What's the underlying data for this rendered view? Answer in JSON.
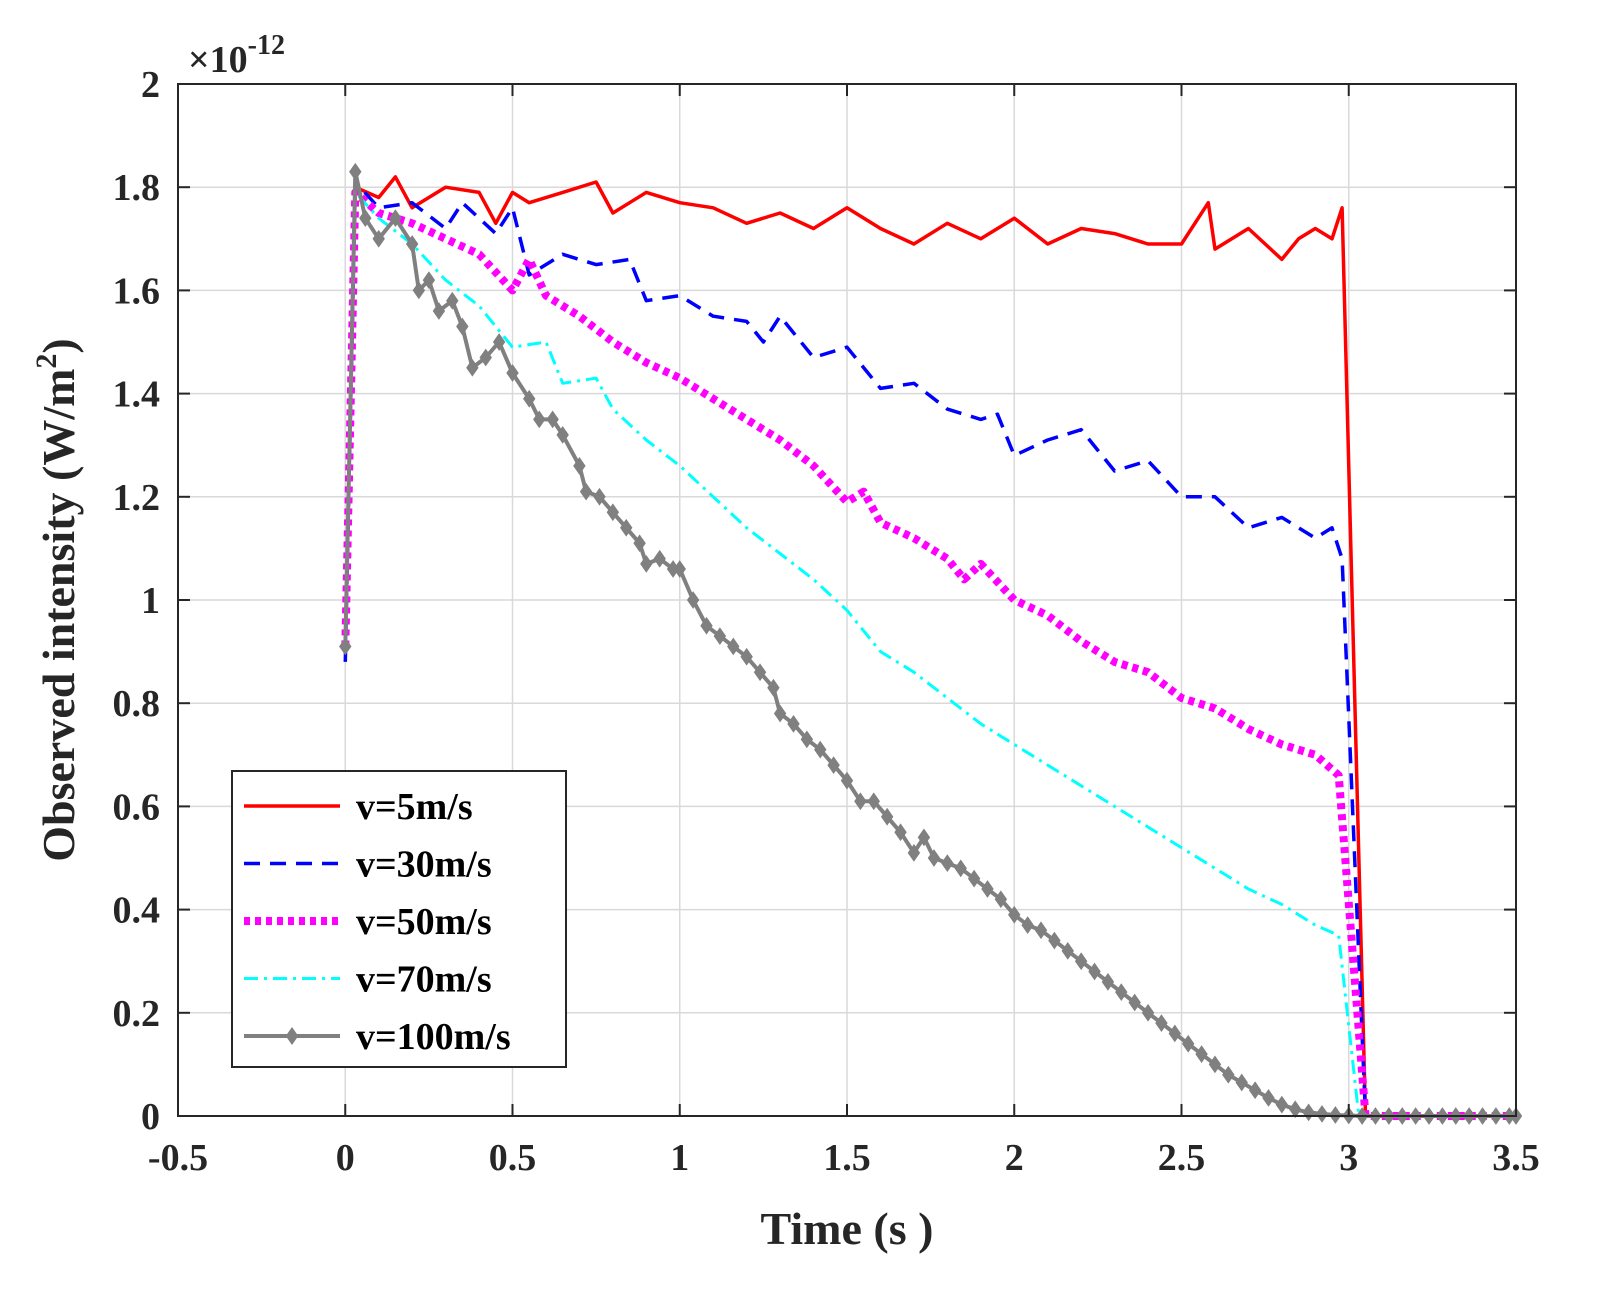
{
  "chart_data": {
    "type": "line",
    "title": "",
    "xlabel": "Time (s )",
    "ylabel": "Observed intensity (W/m",
    "ylabel_superscript": "2",
    "ylabel_suffix": ")",
    "y_exponent_base": "×10",
    "y_exponent_power": "-12",
    "xlim": [
      -0.5,
      3.5
    ],
    "ylim": [
      0,
      2
    ],
    "xticks": [
      -0.5,
      0,
      0.5,
      1,
      1.5,
      2,
      2.5,
      3,
      3.5
    ],
    "xtick_labels": [
      "-0.5",
      "0",
      "0.5",
      "1",
      "1.5",
      "2",
      "2.5",
      "3",
      "3.5"
    ],
    "yticks": [
      0,
      0.2,
      0.4,
      0.6,
      0.8,
      1,
      1.2,
      1.4,
      1.6,
      1.8,
      2
    ],
    "ytick_labels": [
      "0",
      "0.2",
      "0.4",
      "0.6",
      "0.8",
      "1",
      "1.2",
      "1.4",
      "1.6",
      "1.8",
      "2"
    ],
    "grid": true,
    "legend_position": "bottom-left",
    "series": [
      {
        "name": "v=5m/s",
        "color": "#ff0000",
        "style": "solid",
        "marker": "none",
        "points": [
          [
            0,
            0.91
          ],
          [
            0.03,
            1.8
          ],
          [
            0.1,
            1.78
          ],
          [
            0.15,
            1.82
          ],
          [
            0.2,
            1.76
          ],
          [
            0.3,
            1.8
          ],
          [
            0.4,
            1.79
          ],
          [
            0.45,
            1.73
          ],
          [
            0.5,
            1.79
          ],
          [
            0.55,
            1.77
          ],
          [
            0.65,
            1.79
          ],
          [
            0.75,
            1.81
          ],
          [
            0.8,
            1.75
          ],
          [
            0.9,
            1.79
          ],
          [
            1.0,
            1.77
          ],
          [
            1.1,
            1.76
          ],
          [
            1.2,
            1.73
          ],
          [
            1.3,
            1.75
          ],
          [
            1.4,
            1.72
          ],
          [
            1.5,
            1.76
          ],
          [
            1.6,
            1.72
          ],
          [
            1.7,
            1.69
          ],
          [
            1.8,
            1.73
          ],
          [
            1.9,
            1.7
          ],
          [
            2.0,
            1.74
          ],
          [
            2.1,
            1.69
          ],
          [
            2.2,
            1.72
          ],
          [
            2.3,
            1.71
          ],
          [
            2.4,
            1.69
          ],
          [
            2.5,
            1.69
          ],
          [
            2.58,
            1.77
          ],
          [
            2.6,
            1.68
          ],
          [
            2.7,
            1.72
          ],
          [
            2.8,
            1.66
          ],
          [
            2.85,
            1.7
          ],
          [
            2.9,
            1.72
          ],
          [
            2.95,
            1.7
          ],
          [
            2.98,
            1.76
          ],
          [
            3.05,
            0.0
          ],
          [
            3.5,
            0.0
          ]
        ]
      },
      {
        "name": "v=30m/s",
        "color": "#0000ff",
        "style": "dashed",
        "marker": "none",
        "points": [
          [
            0,
            0.88
          ],
          [
            0.03,
            1.81
          ],
          [
            0.1,
            1.76
          ],
          [
            0.2,
            1.77
          ],
          [
            0.3,
            1.72
          ],
          [
            0.35,
            1.77
          ],
          [
            0.45,
            1.71
          ],
          [
            0.5,
            1.76
          ],
          [
            0.55,
            1.63
          ],
          [
            0.65,
            1.67
          ],
          [
            0.75,
            1.65
          ],
          [
            0.85,
            1.66
          ],
          [
            0.9,
            1.58
          ],
          [
            1.0,
            1.59
          ],
          [
            1.1,
            1.55
          ],
          [
            1.2,
            1.54
          ],
          [
            1.25,
            1.5
          ],
          [
            1.3,
            1.55
          ],
          [
            1.4,
            1.47
          ],
          [
            1.5,
            1.49
          ],
          [
            1.6,
            1.41
          ],
          [
            1.7,
            1.42
          ],
          [
            1.8,
            1.37
          ],
          [
            1.9,
            1.35
          ],
          [
            1.95,
            1.36
          ],
          [
            2.0,
            1.28
          ],
          [
            2.1,
            1.31
          ],
          [
            2.2,
            1.33
          ],
          [
            2.3,
            1.25
          ],
          [
            2.4,
            1.27
          ],
          [
            2.5,
            1.2
          ],
          [
            2.6,
            1.2
          ],
          [
            2.7,
            1.14
          ],
          [
            2.8,
            1.16
          ],
          [
            2.9,
            1.12
          ],
          [
            2.95,
            1.14
          ],
          [
            2.98,
            1.08
          ],
          [
            3.05,
            0.0
          ],
          [
            3.5,
            0.0
          ]
        ]
      },
      {
        "name": "v=50m/s",
        "color": "#ff00ff",
        "style": "dotted",
        "marker": "none",
        "points": [
          [
            0,
            0.91
          ],
          [
            0.03,
            1.79
          ],
          [
            0.1,
            1.75
          ],
          [
            0.2,
            1.73
          ],
          [
            0.3,
            1.7
          ],
          [
            0.4,
            1.67
          ],
          [
            0.5,
            1.6
          ],
          [
            0.55,
            1.66
          ],
          [
            0.6,
            1.59
          ],
          [
            0.7,
            1.55
          ],
          [
            0.8,
            1.5
          ],
          [
            0.9,
            1.46
          ],
          [
            1.0,
            1.43
          ],
          [
            1.1,
            1.39
          ],
          [
            1.2,
            1.35
          ],
          [
            1.3,
            1.31
          ],
          [
            1.4,
            1.26
          ],
          [
            1.5,
            1.19
          ],
          [
            1.55,
            1.21
          ],
          [
            1.6,
            1.15
          ],
          [
            1.7,
            1.12
          ],
          [
            1.8,
            1.08
          ],
          [
            1.85,
            1.04
          ],
          [
            1.9,
            1.07
          ],
          [
            2.0,
            1.0
          ],
          [
            2.1,
            0.97
          ],
          [
            2.2,
            0.92
          ],
          [
            2.3,
            0.88
          ],
          [
            2.4,
            0.86
          ],
          [
            2.5,
            0.81
          ],
          [
            2.6,
            0.79
          ],
          [
            2.7,
            0.75
          ],
          [
            2.8,
            0.72
          ],
          [
            2.9,
            0.7
          ],
          [
            2.97,
            0.66
          ],
          [
            3.05,
            0.0
          ],
          [
            3.5,
            0.0
          ]
        ]
      },
      {
        "name": "v=70m/s",
        "color": "#00ffff",
        "style": "dashdot",
        "marker": "none",
        "points": [
          [
            0,
            0.9
          ],
          [
            0.03,
            1.79
          ],
          [
            0.1,
            1.74
          ],
          [
            0.2,
            1.69
          ],
          [
            0.3,
            1.62
          ],
          [
            0.4,
            1.57
          ],
          [
            0.5,
            1.49
          ],
          [
            0.6,
            1.5
          ],
          [
            0.65,
            1.42
          ],
          [
            0.75,
            1.43
          ],
          [
            0.8,
            1.37
          ],
          [
            0.9,
            1.31
          ],
          [
            1.0,
            1.26
          ],
          [
            1.1,
            1.2
          ],
          [
            1.2,
            1.14
          ],
          [
            1.3,
            1.09
          ],
          [
            1.4,
            1.04
          ],
          [
            1.5,
            0.98
          ],
          [
            1.6,
            0.9
          ],
          [
            1.7,
            0.86
          ],
          [
            1.8,
            0.81
          ],
          [
            1.9,
            0.76
          ],
          [
            2.0,
            0.72
          ],
          [
            2.1,
            0.68
          ],
          [
            2.2,
            0.64
          ],
          [
            2.3,
            0.6
          ],
          [
            2.4,
            0.56
          ],
          [
            2.5,
            0.52
          ],
          [
            2.6,
            0.48
          ],
          [
            2.7,
            0.44
          ],
          [
            2.8,
            0.41
          ],
          [
            2.9,
            0.37
          ],
          [
            2.97,
            0.35
          ],
          [
            3.03,
            0.0
          ],
          [
            3.5,
            0.0
          ]
        ]
      },
      {
        "name": "v=100m/s",
        "color": "#808080",
        "style": "solid",
        "marker": "diamond",
        "points": [
          [
            0,
            0.91
          ],
          [
            0.03,
            1.83
          ],
          [
            0.06,
            1.74
          ],
          [
            0.1,
            1.7
          ],
          [
            0.15,
            1.74
          ],
          [
            0.2,
            1.69
          ],
          [
            0.22,
            1.6
          ],
          [
            0.25,
            1.62
          ],
          [
            0.28,
            1.56
          ],
          [
            0.32,
            1.58
          ],
          [
            0.35,
            1.53
          ],
          [
            0.38,
            1.45
          ],
          [
            0.42,
            1.47
          ],
          [
            0.46,
            1.5
          ],
          [
            0.5,
            1.44
          ],
          [
            0.55,
            1.39
          ],
          [
            0.58,
            1.35
          ],
          [
            0.62,
            1.35
          ],
          [
            0.65,
            1.32
          ],
          [
            0.7,
            1.26
          ],
          [
            0.72,
            1.21
          ],
          [
            0.76,
            1.2
          ],
          [
            0.8,
            1.17
          ],
          [
            0.84,
            1.14
          ],
          [
            0.88,
            1.11
          ],
          [
            0.9,
            1.07
          ],
          [
            0.94,
            1.08
          ],
          [
            0.98,
            1.06
          ],
          [
            1.0,
            1.06
          ],
          [
            1.04,
            1.0
          ],
          [
            1.08,
            0.95
          ],
          [
            1.12,
            0.93
          ],
          [
            1.16,
            0.91
          ],
          [
            1.2,
            0.89
          ],
          [
            1.24,
            0.86
          ],
          [
            1.28,
            0.83
          ],
          [
            1.3,
            0.78
          ],
          [
            1.34,
            0.76
          ],
          [
            1.38,
            0.73
          ],
          [
            1.42,
            0.71
          ],
          [
            1.46,
            0.68
          ],
          [
            1.5,
            0.65
          ],
          [
            1.54,
            0.61
          ],
          [
            1.58,
            0.61
          ],
          [
            1.62,
            0.58
          ],
          [
            1.66,
            0.55
          ],
          [
            1.7,
            0.51
          ],
          [
            1.73,
            0.54
          ],
          [
            1.76,
            0.5
          ],
          [
            1.8,
            0.49
          ],
          [
            1.84,
            0.48
          ],
          [
            1.88,
            0.46
          ],
          [
            1.92,
            0.44
          ],
          [
            1.96,
            0.42
          ],
          [
            2.0,
            0.39
          ],
          [
            2.04,
            0.37
          ],
          [
            2.08,
            0.36
          ],
          [
            2.12,
            0.34
          ],
          [
            2.16,
            0.32
          ],
          [
            2.2,
            0.3
          ],
          [
            2.24,
            0.28
          ],
          [
            2.28,
            0.26
          ],
          [
            2.32,
            0.24
          ],
          [
            2.36,
            0.22
          ],
          [
            2.4,
            0.2
          ],
          [
            2.44,
            0.18
          ],
          [
            2.48,
            0.16
          ],
          [
            2.52,
            0.14
          ],
          [
            2.56,
            0.12
          ],
          [
            2.6,
            0.1
          ],
          [
            2.64,
            0.08
          ],
          [
            2.68,
            0.065
          ],
          [
            2.72,
            0.05
          ],
          [
            2.76,
            0.035
          ],
          [
            2.8,
            0.022
          ],
          [
            2.84,
            0.013
          ],
          [
            2.88,
            0.007
          ],
          [
            2.92,
            0.004
          ],
          [
            2.96,
            0.002
          ],
          [
            3.0,
            0.001
          ],
          [
            3.04,
            0.0
          ],
          [
            3.08,
            0.0
          ],
          [
            3.12,
            0.0
          ],
          [
            3.16,
            0.0
          ],
          [
            3.2,
            0.0
          ],
          [
            3.24,
            0.0
          ],
          [
            3.28,
            0.0
          ],
          [
            3.32,
            0.0
          ],
          [
            3.36,
            0.0
          ],
          [
            3.4,
            0.0
          ],
          [
            3.44,
            0.0
          ],
          [
            3.48,
            0.0
          ],
          [
            3.5,
            0.0
          ]
        ]
      }
    ]
  }
}
